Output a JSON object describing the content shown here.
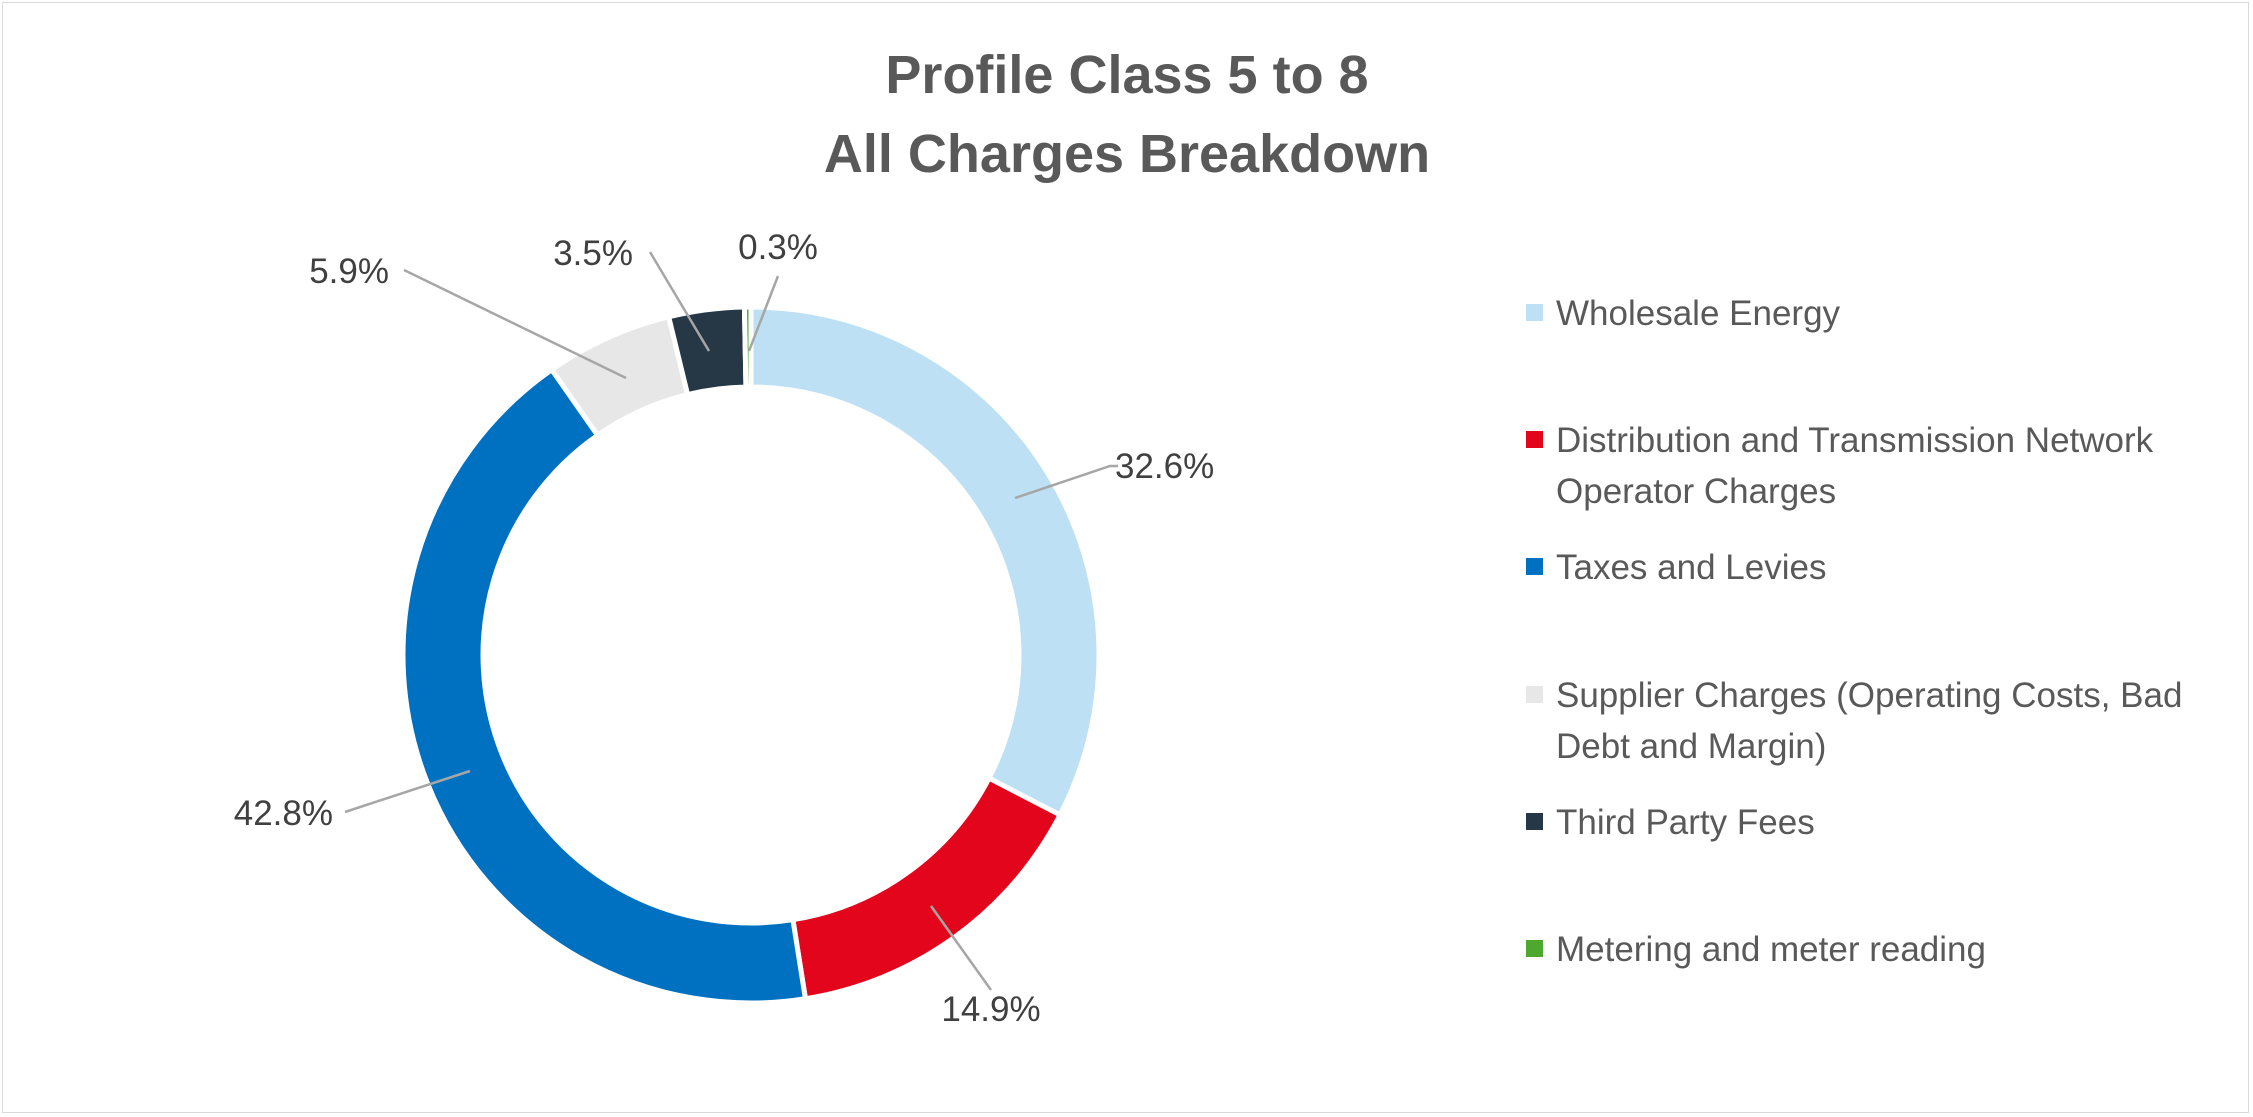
{
  "chart_data": {
    "type": "pie",
    "variant": "doughnut",
    "title": [
      "Profile Class 5 to 8",
      "All Charges Breakdown"
    ],
    "legend_position": "right",
    "series": [
      {
        "name": "Wholesale Energy",
        "legend_lines": [
          "Wholesale Energy"
        ],
        "value": 32.6,
        "label": "32.6%",
        "color": "#BDE0F5"
      },
      {
        "name": "Distribution and Transmission Network Operator Charges",
        "legend_lines": [
          "Distribution and Transmission Network",
          "Operator Charges"
        ],
        "value": 14.9,
        "label": "14.9%",
        "color": "#E3051B"
      },
      {
        "name": "Taxes and Levies",
        "legend_lines": [
          "Taxes and Levies"
        ],
        "value": 42.8,
        "label": "42.8%",
        "color": "#0070C0"
      },
      {
        "name": "Supplier Charges (Operating Costs, Bad Debt and Margin)",
        "legend_lines": [
          "Supplier Charges (Operating Costs, Bad",
          "Debt and Margin)"
        ],
        "value": 5.9,
        "label": "5.9%",
        "color": "#E7E7E7"
      },
      {
        "name": "Third Party Fees",
        "legend_lines": [
          "Third Party Fees"
        ],
        "value": 3.5,
        "label": "3.5%",
        "color": "#263746"
      },
      {
        "name": "Metering and meter reading",
        "legend_lines": [
          "Metering and meter reading"
        ],
        "value": 0.3,
        "label": "0.3%",
        "color": "#4EA72E"
      }
    ]
  }
}
